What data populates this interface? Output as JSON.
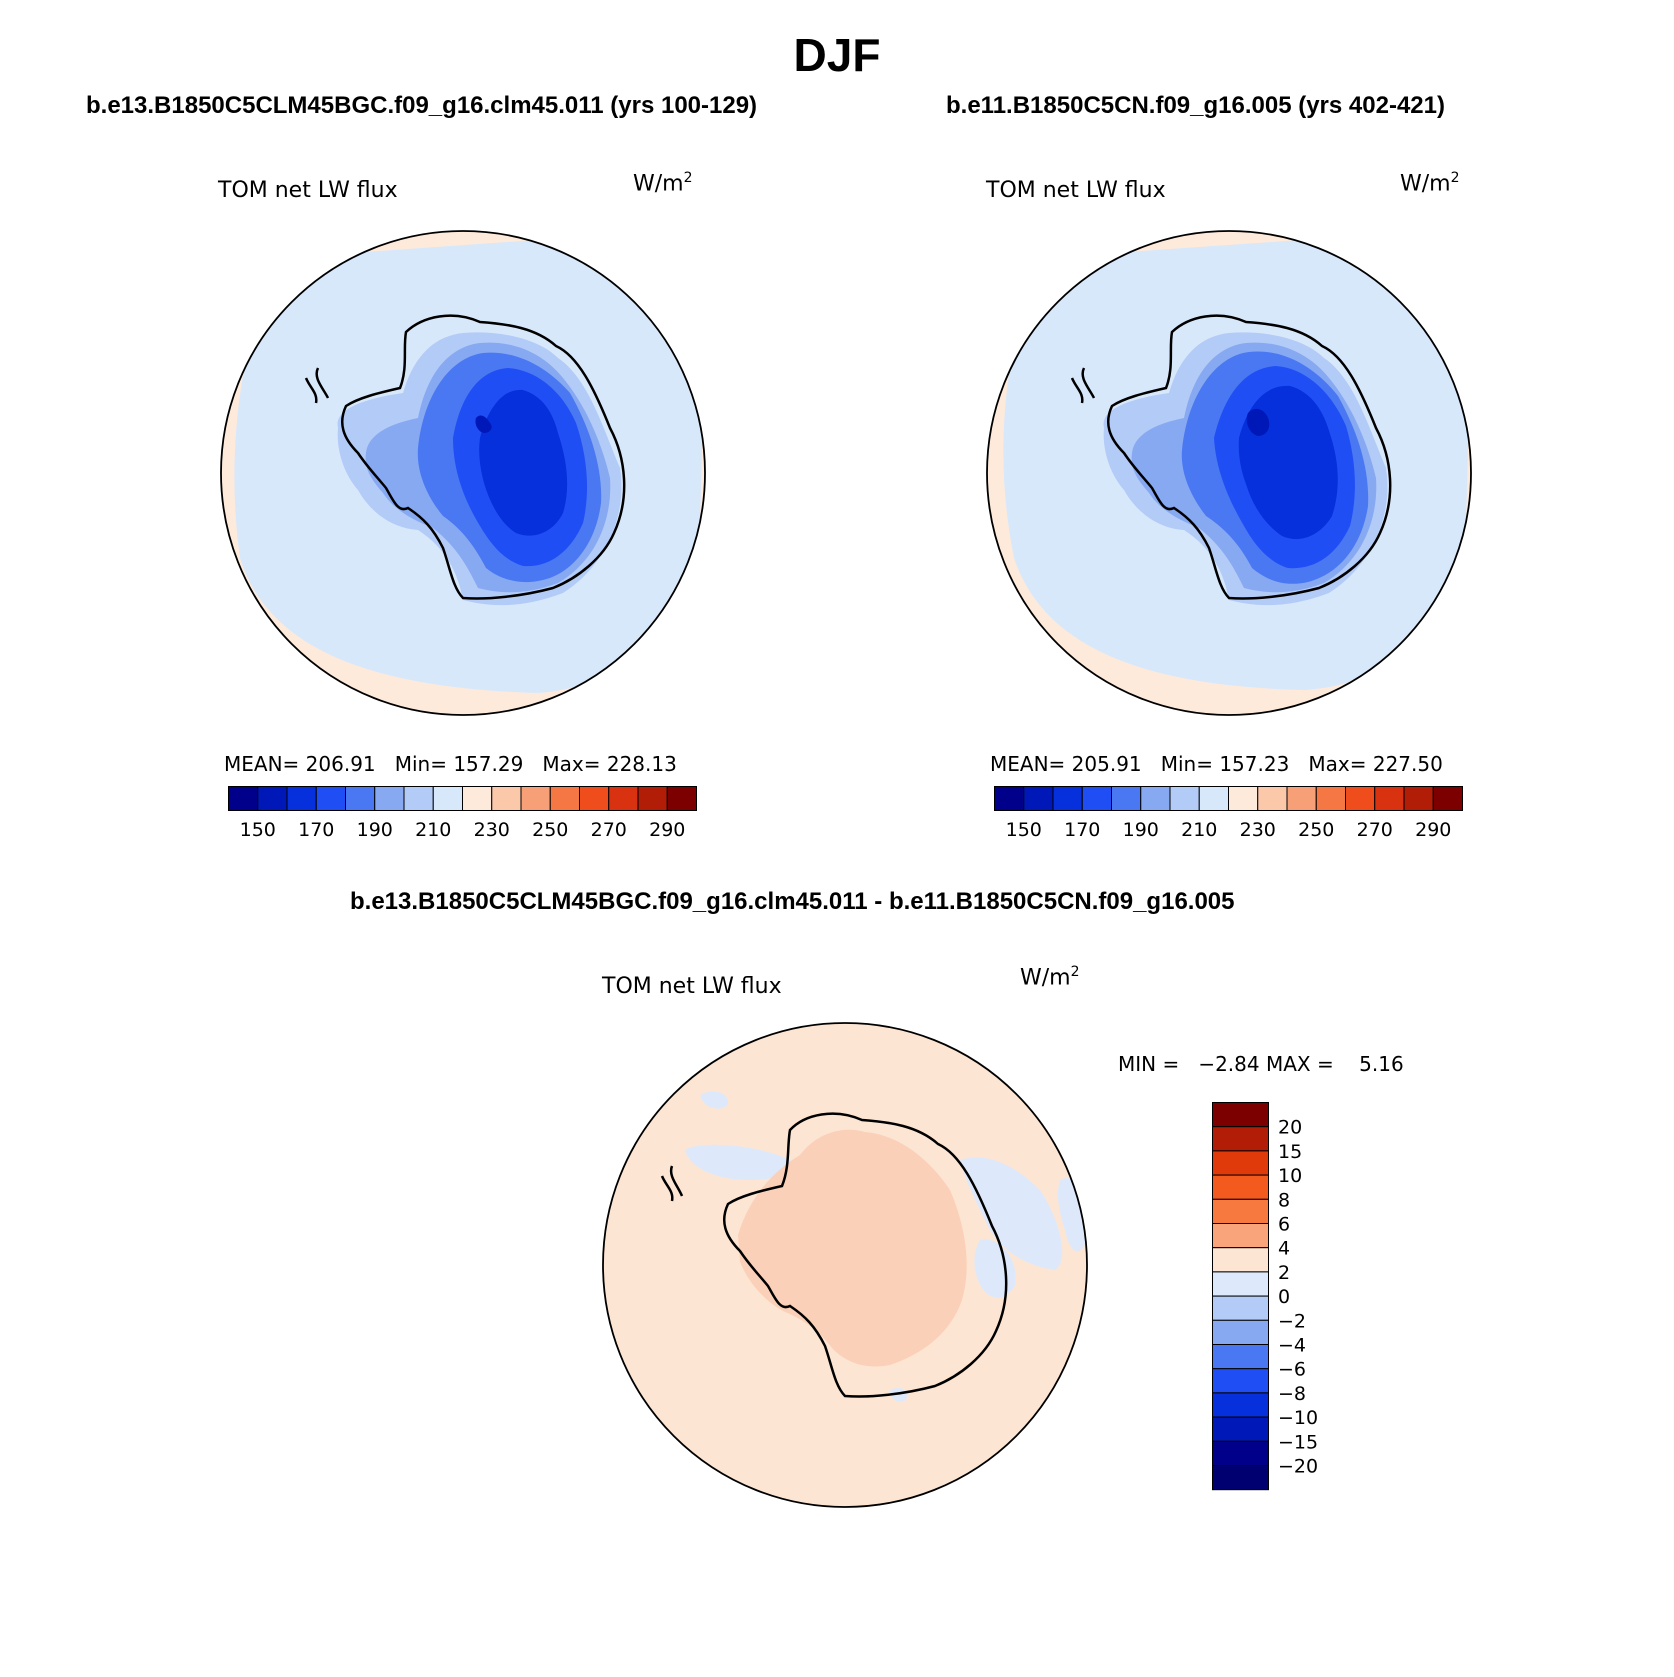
{
  "title": "DJF",
  "panels": [
    {
      "case_title": "b.e13.B1850C5CLM45BGC.f09_g16.clm45.011 (yrs 100-129)",
      "variable": "TOM net LW flux",
      "units_base": "W/m",
      "units_exp": "2",
      "stats": {
        "mean_label": "MEAN=",
        "mean": "206.91",
        "min_label": "Min=",
        "min": "157.29",
        "max_label": "Max=",
        "max": "228.13"
      }
    },
    {
      "case_title": "b.e11.B1850C5CN.f09_g16.005 (yrs 402-421)",
      "variable": "TOM net LW flux",
      "units_base": "W/m",
      "units_exp": "2",
      "stats": {
        "mean_label": "MEAN=",
        "mean": "205.91",
        "min_label": "Min=",
        "min": "157.23",
        "max_label": "Max=",
        "max": "227.50"
      }
    }
  ],
  "abs_colorbar": {
    "colors": [
      "#00008b",
      "#0018b8",
      "#0530db",
      "#1f4ef5",
      "#4a78f2",
      "#87a9f2",
      "#b3cbf7",
      "#d8e8fb",
      "#fdeadb",
      "#fbc8aa",
      "#f7a077",
      "#f57744",
      "#ef4e1c",
      "#d93210",
      "#b21d08",
      "#7d0000"
    ],
    "labels": [
      "150",
      "170",
      "190",
      "210",
      "230",
      "250",
      "270",
      "290"
    ]
  },
  "diff": {
    "title": "b.e13.B1850C5CLM45BGC.f09_g16.clm45.011 - b.e11.B1850C5CN.f09_g16.005",
    "variable": "TOM net LW flux",
    "units_base": "W/m",
    "units_exp": "2",
    "min_label": "MIN =",
    "min": "−2.84",
    "max_label": "MAX =",
    "max": "5.16"
  },
  "diff_colorbar": {
    "colors": [
      "#7d0000",
      "#b21d08",
      "#e03a0a",
      "#f35a1e",
      "#f7793f",
      "#f9a47a",
      "#fde5d3",
      "#dde9fb",
      "#b3cbf7",
      "#87a9f2",
      "#4a78f2",
      "#1f4ef5",
      "#0530db",
      "#0018b8",
      "#00008b",
      "#000070"
    ],
    "labels": [
      "20",
      "15",
      "10",
      "8",
      "6",
      "4",
      "2",
      "0",
      "−2",
      "−4",
      "−6",
      "−8",
      "−10",
      "−15",
      "−20"
    ]
  },
  "colors": {
    "ocean_abs": "#d8e8fb",
    "ocean_warm": "#fdeadb",
    "ocean_diff": "#fde5d3",
    "diff_blue": "#dde9fb",
    "diff_inner": "#fbd0b8"
  }
}
